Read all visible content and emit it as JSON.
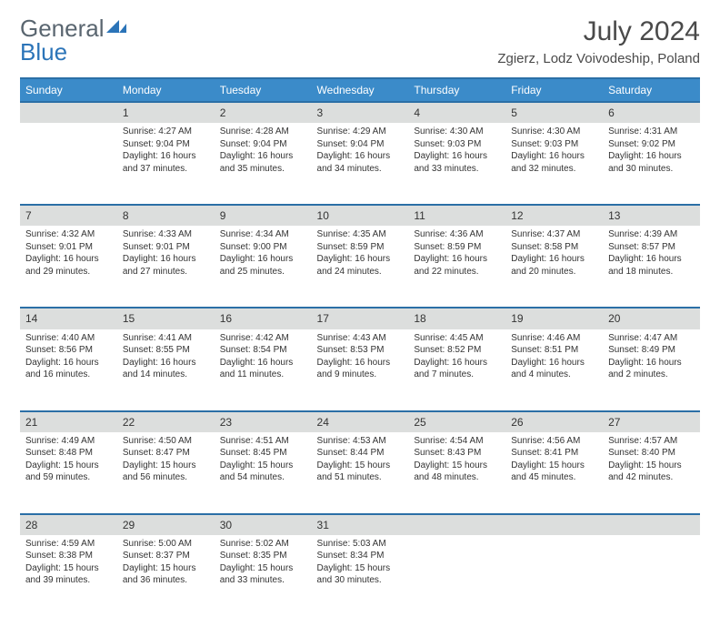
{
  "logo": {
    "text1": "General",
    "text2": "Blue"
  },
  "title": "July 2024",
  "location": "Zgierz, Lodz Voivodeship, Poland",
  "colors": {
    "header_bg": "#3b8bc9",
    "header_border": "#2b6fa6",
    "daynum_bg": "#dcdedd",
    "text": "#333333",
    "title_text": "#4a4a4a",
    "logo_gray": "#5a6670",
    "logo_blue": "#2b74b8"
  },
  "day_headers": [
    "Sunday",
    "Monday",
    "Tuesday",
    "Wednesday",
    "Thursday",
    "Friday",
    "Saturday"
  ],
  "weeks": [
    {
      "nums": [
        "",
        "1",
        "2",
        "3",
        "4",
        "5",
        "6"
      ],
      "cells": [
        null,
        {
          "sunrise": "Sunrise: 4:27 AM",
          "sunset": "Sunset: 9:04 PM",
          "day1": "Daylight: 16 hours",
          "day2": "and 37 minutes."
        },
        {
          "sunrise": "Sunrise: 4:28 AM",
          "sunset": "Sunset: 9:04 PM",
          "day1": "Daylight: 16 hours",
          "day2": "and 35 minutes."
        },
        {
          "sunrise": "Sunrise: 4:29 AM",
          "sunset": "Sunset: 9:04 PM",
          "day1": "Daylight: 16 hours",
          "day2": "and 34 minutes."
        },
        {
          "sunrise": "Sunrise: 4:30 AM",
          "sunset": "Sunset: 9:03 PM",
          "day1": "Daylight: 16 hours",
          "day2": "and 33 minutes."
        },
        {
          "sunrise": "Sunrise: 4:30 AM",
          "sunset": "Sunset: 9:03 PM",
          "day1": "Daylight: 16 hours",
          "day2": "and 32 minutes."
        },
        {
          "sunrise": "Sunrise: 4:31 AM",
          "sunset": "Sunset: 9:02 PM",
          "day1": "Daylight: 16 hours",
          "day2": "and 30 minutes."
        }
      ]
    },
    {
      "nums": [
        "7",
        "8",
        "9",
        "10",
        "11",
        "12",
        "13"
      ],
      "cells": [
        {
          "sunrise": "Sunrise: 4:32 AM",
          "sunset": "Sunset: 9:01 PM",
          "day1": "Daylight: 16 hours",
          "day2": "and 29 minutes."
        },
        {
          "sunrise": "Sunrise: 4:33 AM",
          "sunset": "Sunset: 9:01 PM",
          "day1": "Daylight: 16 hours",
          "day2": "and 27 minutes."
        },
        {
          "sunrise": "Sunrise: 4:34 AM",
          "sunset": "Sunset: 9:00 PM",
          "day1": "Daylight: 16 hours",
          "day2": "and 25 minutes."
        },
        {
          "sunrise": "Sunrise: 4:35 AM",
          "sunset": "Sunset: 8:59 PM",
          "day1": "Daylight: 16 hours",
          "day2": "and 24 minutes."
        },
        {
          "sunrise": "Sunrise: 4:36 AM",
          "sunset": "Sunset: 8:59 PM",
          "day1": "Daylight: 16 hours",
          "day2": "and 22 minutes."
        },
        {
          "sunrise": "Sunrise: 4:37 AM",
          "sunset": "Sunset: 8:58 PM",
          "day1": "Daylight: 16 hours",
          "day2": "and 20 minutes."
        },
        {
          "sunrise": "Sunrise: 4:39 AM",
          "sunset": "Sunset: 8:57 PM",
          "day1": "Daylight: 16 hours",
          "day2": "and 18 minutes."
        }
      ]
    },
    {
      "nums": [
        "14",
        "15",
        "16",
        "17",
        "18",
        "19",
        "20"
      ],
      "cells": [
        {
          "sunrise": "Sunrise: 4:40 AM",
          "sunset": "Sunset: 8:56 PM",
          "day1": "Daylight: 16 hours",
          "day2": "and 16 minutes."
        },
        {
          "sunrise": "Sunrise: 4:41 AM",
          "sunset": "Sunset: 8:55 PM",
          "day1": "Daylight: 16 hours",
          "day2": "and 14 minutes."
        },
        {
          "sunrise": "Sunrise: 4:42 AM",
          "sunset": "Sunset: 8:54 PM",
          "day1": "Daylight: 16 hours",
          "day2": "and 11 minutes."
        },
        {
          "sunrise": "Sunrise: 4:43 AM",
          "sunset": "Sunset: 8:53 PM",
          "day1": "Daylight: 16 hours",
          "day2": "and 9 minutes."
        },
        {
          "sunrise": "Sunrise: 4:45 AM",
          "sunset": "Sunset: 8:52 PM",
          "day1": "Daylight: 16 hours",
          "day2": "and 7 minutes."
        },
        {
          "sunrise": "Sunrise: 4:46 AM",
          "sunset": "Sunset: 8:51 PM",
          "day1": "Daylight: 16 hours",
          "day2": "and 4 minutes."
        },
        {
          "sunrise": "Sunrise: 4:47 AM",
          "sunset": "Sunset: 8:49 PM",
          "day1": "Daylight: 16 hours",
          "day2": "and 2 minutes."
        }
      ]
    },
    {
      "nums": [
        "21",
        "22",
        "23",
        "24",
        "25",
        "26",
        "27"
      ],
      "cells": [
        {
          "sunrise": "Sunrise: 4:49 AM",
          "sunset": "Sunset: 8:48 PM",
          "day1": "Daylight: 15 hours",
          "day2": "and 59 minutes."
        },
        {
          "sunrise": "Sunrise: 4:50 AM",
          "sunset": "Sunset: 8:47 PM",
          "day1": "Daylight: 15 hours",
          "day2": "and 56 minutes."
        },
        {
          "sunrise": "Sunrise: 4:51 AM",
          "sunset": "Sunset: 8:45 PM",
          "day1": "Daylight: 15 hours",
          "day2": "and 54 minutes."
        },
        {
          "sunrise": "Sunrise: 4:53 AM",
          "sunset": "Sunset: 8:44 PM",
          "day1": "Daylight: 15 hours",
          "day2": "and 51 minutes."
        },
        {
          "sunrise": "Sunrise: 4:54 AM",
          "sunset": "Sunset: 8:43 PM",
          "day1": "Daylight: 15 hours",
          "day2": "and 48 minutes."
        },
        {
          "sunrise": "Sunrise: 4:56 AM",
          "sunset": "Sunset: 8:41 PM",
          "day1": "Daylight: 15 hours",
          "day2": "and 45 minutes."
        },
        {
          "sunrise": "Sunrise: 4:57 AM",
          "sunset": "Sunset: 8:40 PM",
          "day1": "Daylight: 15 hours",
          "day2": "and 42 minutes."
        }
      ]
    },
    {
      "nums": [
        "28",
        "29",
        "30",
        "31",
        "",
        "",
        ""
      ],
      "cells": [
        {
          "sunrise": "Sunrise: 4:59 AM",
          "sunset": "Sunset: 8:38 PM",
          "day1": "Daylight: 15 hours",
          "day2": "and 39 minutes."
        },
        {
          "sunrise": "Sunrise: 5:00 AM",
          "sunset": "Sunset: 8:37 PM",
          "day1": "Daylight: 15 hours",
          "day2": "and 36 minutes."
        },
        {
          "sunrise": "Sunrise: 5:02 AM",
          "sunset": "Sunset: 8:35 PM",
          "day1": "Daylight: 15 hours",
          "day2": "and 33 minutes."
        },
        {
          "sunrise": "Sunrise: 5:03 AM",
          "sunset": "Sunset: 8:34 PM",
          "day1": "Daylight: 15 hours",
          "day2": "and 30 minutes."
        },
        null,
        null,
        null
      ]
    }
  ]
}
